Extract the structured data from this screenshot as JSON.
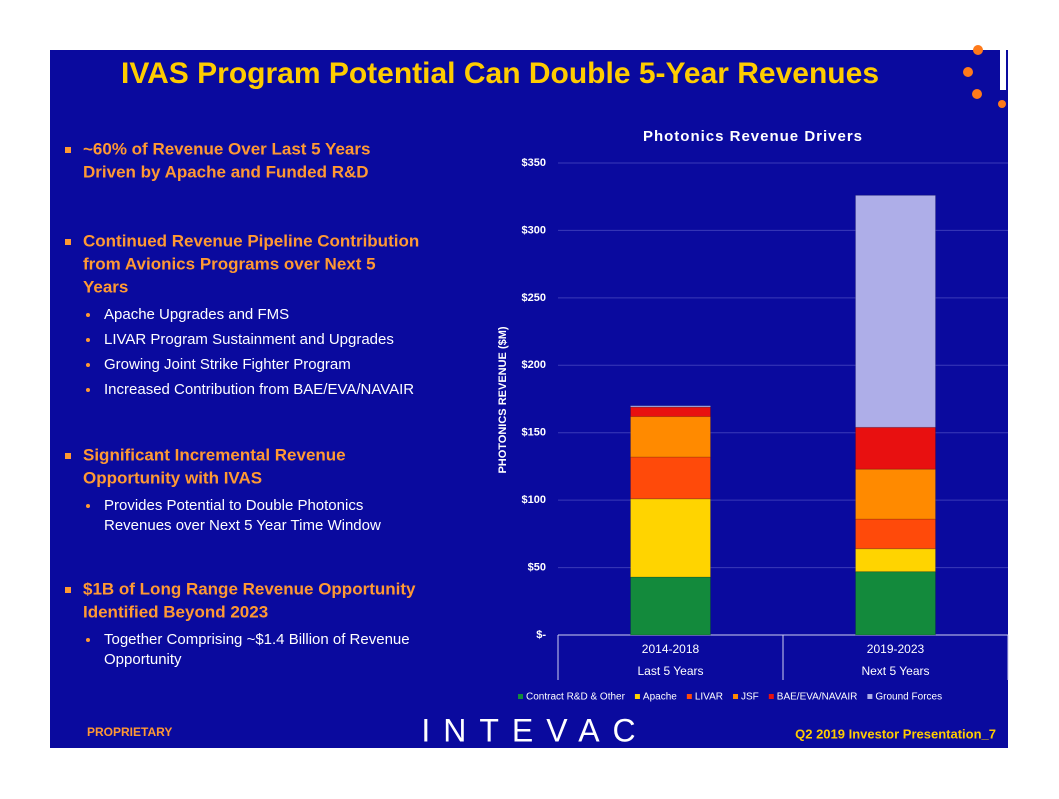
{
  "slide": {
    "title": "IVAS Program Potential Can Double 5-Year Revenues",
    "bullets": [
      {
        "lines": [
          "~60% of Revenue Over Last 5 Years",
          "Driven by Apache and Funded R&D"
        ],
        "sub": []
      },
      {
        "lines": [
          "Continued Revenue Pipeline Contribution",
          "from Avionics Programs over Next 5",
          "Years"
        ],
        "sub": [
          [
            "Apache Upgrades and FMS"
          ],
          [
            "LIVAR Program Sustainment and Upgrades"
          ],
          [
            "Growing Joint Strike Fighter Program"
          ],
          [
            "Increased Contribution from BAE/EVA/NAVAIR"
          ]
        ]
      },
      {
        "lines": [
          "Significant Incremental Revenue",
          "Opportunity with IVAS"
        ],
        "sub": [
          [
            "Provides Potential to Double Photonics",
            "Revenues over Next 5 Year Time Window"
          ]
        ]
      },
      {
        "lines": [
          "$1B of Long Range Revenue Opportunity",
          "Identified Beyond 2023"
        ],
        "sub": [
          [
            "Together Comprising ~$1.4 Billion of Revenue",
            "Opportunity"
          ]
        ]
      }
    ],
    "footer": {
      "left": "PROPRIETARY",
      "logo": "INTEVAC",
      "right": "Q2 2019 Investor Presentation_7"
    }
  },
  "chart_data": {
    "type": "stacked_bar",
    "title": "Photonics Revenue Drivers",
    "y_label": "PHOTONICS REVENUE ($M)",
    "categories": [
      "2014-2018",
      "2019-2023"
    ],
    "category_groups": [
      "Last 5 Years",
      "Next 5 Years"
    ],
    "series": [
      {
        "name": "Contract R&D & Other",
        "color": "#138a3c",
        "values": [
          43,
          47
        ]
      },
      {
        "name": "Apache",
        "color": "#ffd400",
        "values": [
          58,
          17
        ]
      },
      {
        "name": "LIVAR",
        "color": "#ff4a0a",
        "values": [
          31,
          22
        ]
      },
      {
        "name": "JSF",
        "color": "#ff8a00",
        "values": [
          30,
          37
        ]
      },
      {
        "name": "BAE/EVA/NAVAIR",
        "color": "#e81010",
        "values": [
          7,
          31
        ]
      },
      {
        "name": "Ground Forces",
        "color": "#aeaee8",
        "values": [
          1,
          172
        ]
      }
    ],
    "ylim": [
      0,
      350
    ],
    "yticks": [
      {
        "value": 0,
        "label": "$-"
      },
      {
        "value": 50,
        "label": "$50"
      },
      {
        "value": 100,
        "label": "$100"
      },
      {
        "value": 150,
        "label": "$150"
      },
      {
        "value": 200,
        "label": "$200"
      },
      {
        "value": 250,
        "label": "$250"
      },
      {
        "value": 300,
        "label": "$300"
      },
      {
        "value": 350,
        "label": "$350"
      }
    ],
    "grid": true,
    "legend": "bottom"
  }
}
